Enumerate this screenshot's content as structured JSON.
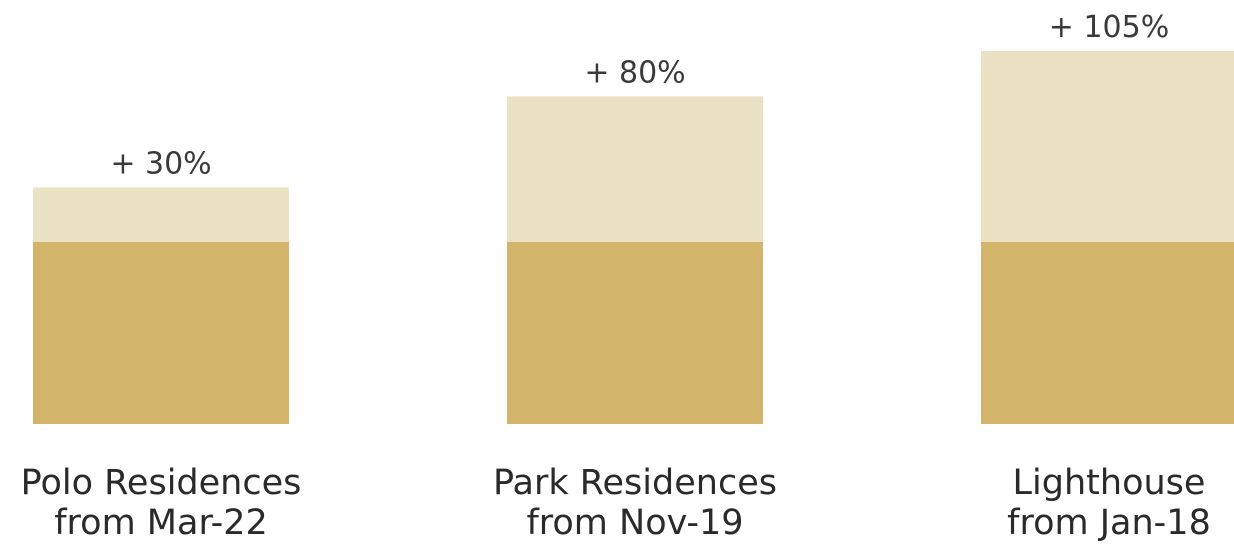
{
  "chart_data": {
    "type": "bar",
    "stacked": true,
    "categories": [
      {
        "name": "Polo Residences",
        "since": "from Mar-22"
      },
      {
        "name": "Park Residences",
        "since": "from Nov-19"
      },
      {
        "name": "Lighthouse",
        "since": "from Jan-18"
      }
    ],
    "series": [
      {
        "values": [
          100,
          100,
          100
        ],
        "color": "#D2B56A"
      },
      {
        "values": [
          30,
          80,
          105
        ],
        "color": "#EBE1C4"
      }
    ],
    "gain_labels": [
      "+ 30%",
      "+ 80%",
      "+ 105%"
    ],
    "ylim": [
      0,
      205
    ],
    "grid": false,
    "legend": false
  }
}
